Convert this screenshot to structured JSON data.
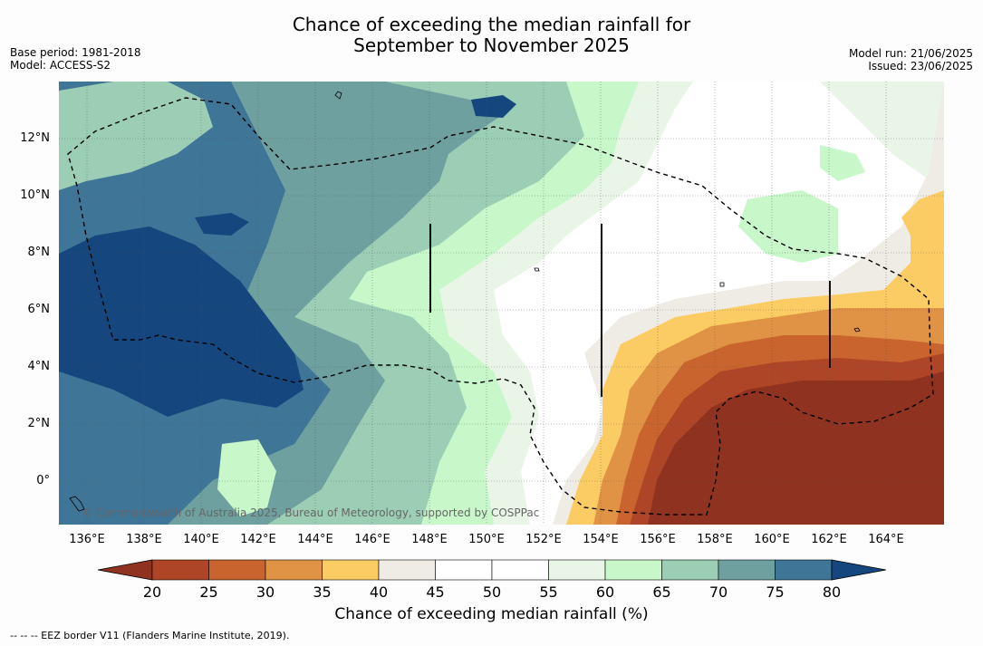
{
  "title_line1": "Chance of exceeding the median rainfall for",
  "title_line2": "September to November 2025",
  "base_period": "Base period: 1981-2018",
  "model": "Model: ACCESS-S2",
  "model_run": "Model run: 21/06/2025",
  "issued": "Issued: 23/06/2025",
  "copyright": "© Commonwealth of Australia 2025, Bureau of Meteorology, supported by COSPPac",
  "lat_labels": [
    "12°N",
    "10°N",
    "8°N",
    "6°N",
    "4°N",
    "2°N",
    "0°"
  ],
  "lon_labels": [
    "136°E",
    "138°E",
    "140°E",
    "142°E",
    "144°E",
    "146°E",
    "148°E",
    "150°E",
    "152°E",
    "154°E",
    "156°E",
    "158°E",
    "160°E",
    "162°E",
    "164°E"
  ],
  "colorbar": {
    "ticks": [
      "20",
      "25",
      "30",
      "35",
      "40",
      "45",
      "50",
      "55",
      "60",
      "65",
      "70",
      "75",
      "80"
    ],
    "colors": [
      "#8f3220",
      "#ad4526",
      "#c9642f",
      "#e09345",
      "#fccc64",
      "#efece5",
      "#ffffff",
      "#ffffff",
      "#e9f5e7",
      "#c8f7c9",
      "#9bceb5",
      "#6ea0a0",
      "#3f7597",
      "#15467e"
    ],
    "label": "Chance of exceeding median rainfall (%)"
  },
  "legend_text": "--  --  -- EEZ border V11 (Flanders Marine Institute, 2019).",
  "colors": {
    "c80": "#15467e",
    "c75": "#3f7597",
    "c70": "#6ea0a0",
    "c65": "#9bceb5",
    "c60": "#c8f7c9",
    "c55": "#e9f5e7",
    "c50": "#ffffff",
    "c45": "#efece5",
    "c40": "#fccc64",
    "c35": "#e09345",
    "c30": "#c9642f",
    "c25": "#ad4526",
    "c20": "#8f3220"
  }
}
